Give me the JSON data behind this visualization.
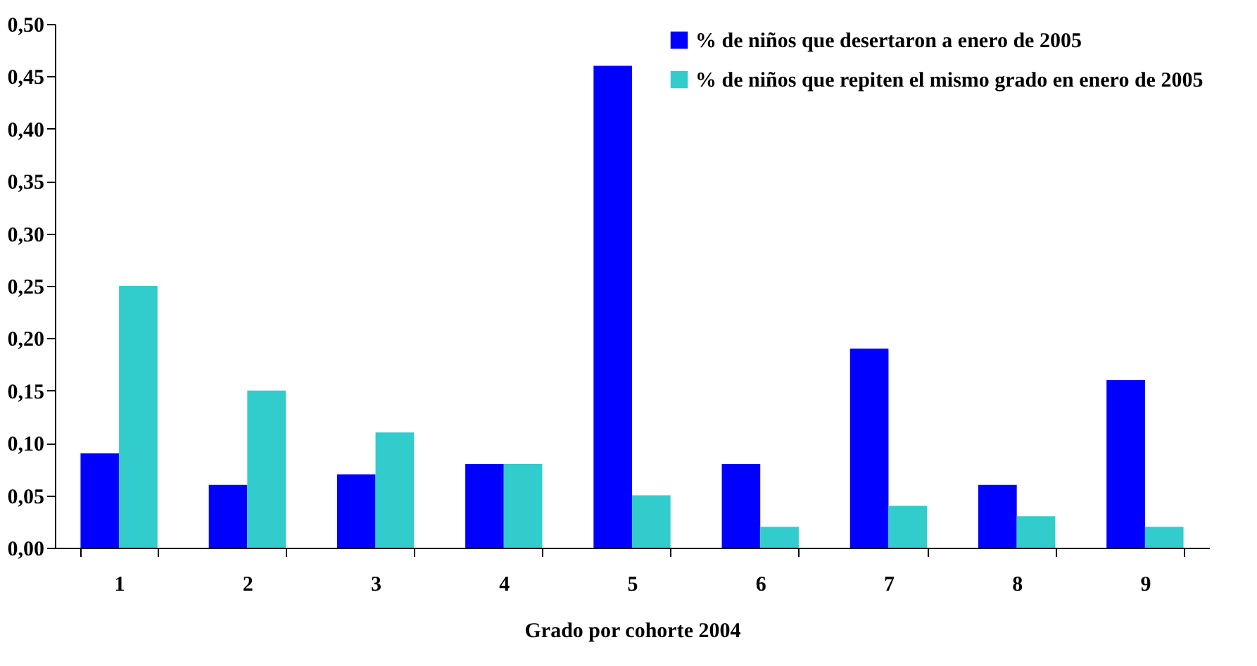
{
  "chart_data": {
    "type": "bar",
    "xlabel": "Grado por cohorte 2004",
    "categories": [
      "1",
      "2",
      "3",
      "4",
      "5",
      "6",
      "7",
      "8",
      "9"
    ],
    "series": [
      {
        "name": "% de niños que desertaron a enero de 2005",
        "color": "#0000ff",
        "values": [
          0.09,
          0.06,
          0.07,
          0.08,
          0.46,
          0.08,
          0.19,
          0.06,
          0.16
        ]
      },
      {
        "name": "% de niños que repiten el mismo grado en enero de 2005",
        "color": "#33cccc",
        "values": [
          0.25,
          0.15,
          0.11,
          0.08,
          0.05,
          0.02,
          0.04,
          0.03,
          0.02
        ]
      }
    ],
    "ylim": [
      0,
      0.5
    ],
    "yticks": [
      {
        "value": 0,
        "label": "0,00"
      },
      {
        "value": 0.05,
        "label": "0,05"
      },
      {
        "value": 0.1,
        "label": "0,10"
      },
      {
        "value": 0.15,
        "label": "0,15"
      },
      {
        "value": 0.2,
        "label": "0,20"
      },
      {
        "value": 0.25,
        "label": "0,25"
      },
      {
        "value": 0.3,
        "label": "0,30"
      },
      {
        "value": 0.35,
        "label": "0,35"
      },
      {
        "value": 0.4,
        "label": "0,40"
      },
      {
        "value": 0.45,
        "label": "0,45"
      },
      {
        "value": 0.5,
        "label": "0,50"
      }
    ],
    "legend": "top right",
    "grid": false
  }
}
